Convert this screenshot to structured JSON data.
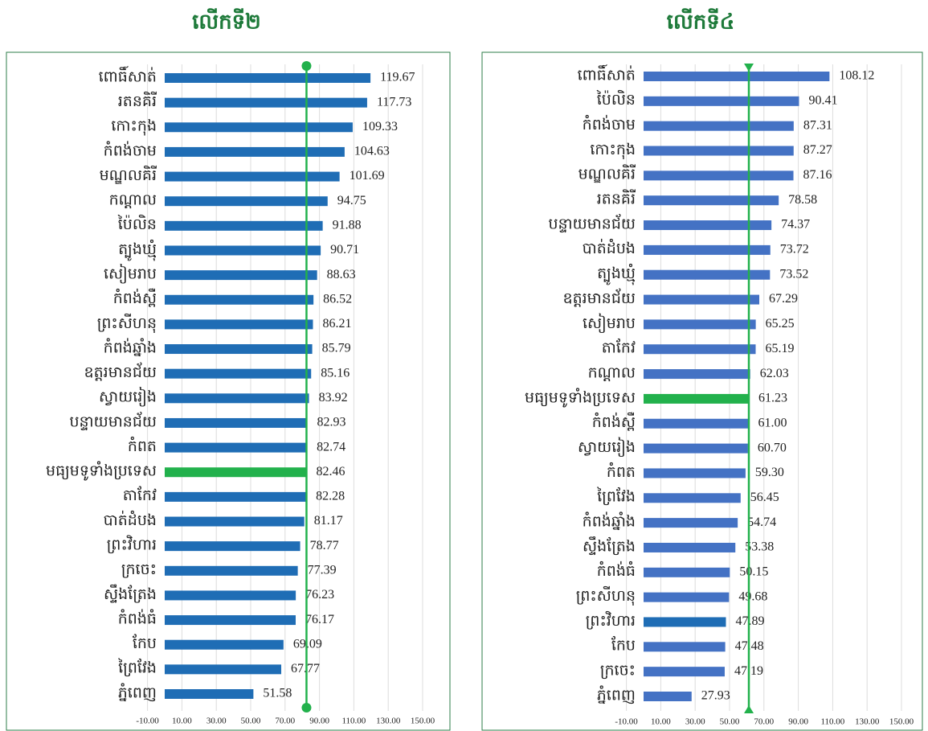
{
  "chart_data": [
    {
      "type": "bar",
      "orientation": "horizontal",
      "title": "លើកទី២",
      "categories": [
        "ពោធិ៍សាត់",
        "រតនគិរី",
        "កោះកុង",
        "កំពង់ចាម",
        "មណ្ឌលគិរី",
        "កណ្ដាល",
        "ប៉ៃលិន",
        "ត្បូងឃ្មុំ",
        "សៀមរាប",
        "កំពង់ស្ពឺ",
        "ព្រះសីហនុ",
        "កំពង់ឆ្នាំង",
        "ឧត្តរមានជ័យ",
        "ស្វាយរៀង",
        "បន្ទាយមានជ័យ",
        "កំពត",
        "មធ្យមទូទាំងប្រទេស",
        "តាកែវ",
        "បាត់ដំបង",
        "ព្រះវិហារ",
        "ក្រចេះ",
        "ស្ទឹងត្រែង",
        "កំពង់ធំ",
        "កែប",
        "ព្រៃវែង",
        "ភ្នំពេញ"
      ],
      "values": [
        119.67,
        117.73,
        109.33,
        104.63,
        101.69,
        94.75,
        91.88,
        90.71,
        88.63,
        86.52,
        86.21,
        85.79,
        85.16,
        83.92,
        82.93,
        82.74,
        82.46,
        82.28,
        81.17,
        78.77,
        77.39,
        76.23,
        76.17,
        69.09,
        67.77,
        51.58
      ],
      "value_labels": [
        "119.67",
        "117.73",
        "109.33",
        "104.63",
        "101.69",
        "94.75",
        "91.88",
        "90.71",
        "88.63",
        "86.52",
        "86.21",
        "85.79",
        "85.16",
        "83.92",
        "82.93",
        "82.74",
        "82.46",
        "82.28",
        "81.17",
        "78.77",
        "77.39",
        "76.23",
        "76.17",
        "69.09",
        "67.77",
        "51.58"
      ],
      "colors": [
        "#1f6db5",
        "#1f6db5",
        "#1f6db5",
        "#1f6db5",
        "#1f6db5",
        "#1f6db5",
        "#1f6db5",
        "#1f6db5",
        "#1f6db5",
        "#1f6db5",
        "#1f6db5",
        "#1f6db5",
        "#1f6db5",
        "#1f6db5",
        "#1f6db5",
        "#1f6db5",
        "#22b14c",
        "#1f6db5",
        "#1f6db5",
        "#1f6db5",
        "#1f6db5",
        "#1f6db5",
        "#1f6db5",
        "#1f6db5",
        "#1f6db5",
        "#1f6db5"
      ],
      "xlim": [
        -10,
        150
      ],
      "xticks": [
        {
          "value": -10,
          "label": "-10.00"
        },
        {
          "value": 10,
          "label": "10.00"
        },
        {
          "value": 30,
          "label": "30.00"
        },
        {
          "value": 50,
          "label": "50.00"
        },
        {
          "value": 70,
          "label": "70.00"
        },
        {
          "value": 90,
          "label": "90.00"
        },
        {
          "value": 110,
          "label": "110.00"
        },
        {
          "value": 130,
          "label": "130.00"
        },
        {
          "value": 150,
          "label": "150.00"
        }
      ],
      "grid": true,
      "average_line": {
        "value": 82.46,
        "color": "#22b14c",
        "marker": "circle"
      }
    },
    {
      "type": "bar",
      "orientation": "horizontal",
      "title": "លើកទី៤",
      "categories": [
        "ពោធិ៍សាត់",
        "ប៉ៃលិន",
        "កំពង់ចាម",
        "កោះកុង",
        "មណ្ឌលគិរី",
        "រតនគិរី",
        "បន្ទាយមានជ័យ",
        "បាត់ដំបង",
        "ត្បូងឃ្មុំ",
        "ឧត្តរមានជ័យ",
        "សៀមរាប",
        "តាកែវ",
        "កណ្ដាល",
        "មធ្យមទូទាំងប្រទេស",
        "កំពង់ស្ពឺ",
        "ស្វាយរៀង",
        "កំពត",
        "ព្រៃវែង",
        "កំពង់ឆ្នាំង",
        "ស្ទឹងត្រែង",
        "កំពង់ធំ",
        "ព្រះសីហនុ",
        "ព្រះវិហារ",
        "កែប",
        "ក្រចេះ",
        "ភ្នំពេញ"
      ],
      "values": [
        108.12,
        90.41,
        87.31,
        87.27,
        87.16,
        78.58,
        74.37,
        73.72,
        73.52,
        67.29,
        65.25,
        65.19,
        62.03,
        61.23,
        61.0,
        60.7,
        59.3,
        56.45,
        54.74,
        53.38,
        50.15,
        49.68,
        47.89,
        47.48,
        47.19,
        27.93
      ],
      "value_labels": [
        "108.12",
        "90.41",
        "87.31",
        "87.27",
        "87.16",
        "78.58",
        "74.37",
        "73.72",
        "73.52",
        "67.29",
        "65.25",
        "65.19",
        "62.03",
        "61.23",
        "61.00",
        "60.70",
        "59.30",
        "56.45",
        "54.74",
        "53.38",
        "50.15",
        "49.68",
        "47.89",
        "47.48",
        "47.19",
        "27.93"
      ],
      "colors": [
        "#4472c4",
        "#4472c4",
        "#4472c4",
        "#4472c4",
        "#4472c4",
        "#4472c4",
        "#4472c4",
        "#4472c4",
        "#4472c4",
        "#4472c4",
        "#4472c4",
        "#4472c4",
        "#4472c4",
        "#22b14c",
        "#4472c4",
        "#4472c4",
        "#4472c4",
        "#4472c4",
        "#4472c4",
        "#4472c4",
        "#4472c4",
        "#4472c4",
        "#1f6db5",
        "#4472c4",
        "#4472c4",
        "#4472c4"
      ],
      "xlim": [
        -10,
        150
      ],
      "xticks": [
        {
          "value": -10,
          "label": "-10.00"
        },
        {
          "value": 10,
          "label": "10.00"
        },
        {
          "value": 30,
          "label": "30.00"
        },
        {
          "value": 50,
          "label": "50.00"
        },
        {
          "value": 70,
          "label": "70.00"
        },
        {
          "value": 90,
          "label": "90.00"
        },
        {
          "value": 110,
          "label": "110.00"
        },
        {
          "value": 130,
          "label": "130.00"
        },
        {
          "value": 150,
          "label": "150.00"
        }
      ],
      "grid": true,
      "average_line": {
        "value": 61.23,
        "color": "#22b14c",
        "marker": "triangle"
      }
    }
  ]
}
